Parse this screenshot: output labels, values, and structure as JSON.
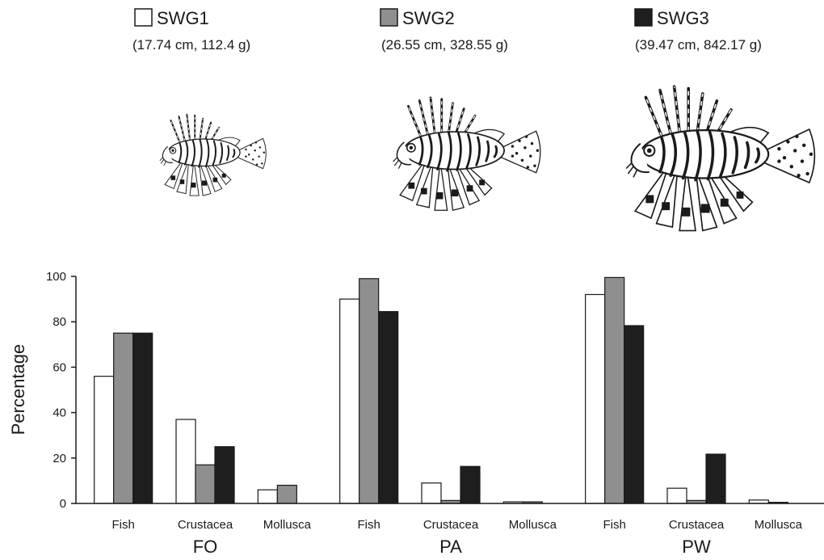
{
  "colors": {
    "SWG1": "#ffffff",
    "SWG2": "#8f8f8f",
    "SWG3": "#1e1e1e",
    "stroke": "#1a1a1a"
  },
  "legend": [
    {
      "name": "SWG1",
      "sub": "(17.74 cm, 112.4 g)",
      "color": "#ffffff"
    },
    {
      "name": "SWG2",
      "sub": "(26.55 cm, 328.55 g)",
      "color": "#8f8f8f"
    },
    {
      "name": "SWG3",
      "sub": "(39.47 cm, 842.17 g)",
      "color": "#1e1e1e"
    }
  ],
  "illustrations": [
    "lionfish-small",
    "lionfish-medium",
    "lionfish-large"
  ],
  "chart_data": {
    "type": "bar",
    "ylabel": "Percentage",
    "ylim": [
      0,
      100
    ],
    "yticks": [
      0,
      20,
      40,
      60,
      80,
      100
    ],
    "grid": false,
    "legend_placement": "top",
    "groups": [
      {
        "label": "FO",
        "categories": [
          "Fish",
          "Crustacea",
          "Mollusca"
        ],
        "series": [
          {
            "name": "SWG1",
            "values": [
              56,
              37,
              6
            ]
          },
          {
            "name": "SWG2",
            "values": [
              75,
              17,
              8
            ]
          },
          {
            "name": "SWG3",
            "values": [
              75,
              25,
              0
            ]
          }
        ]
      },
      {
        "label": "PA",
        "categories": [
          "Fish",
          "Crustacea",
          "Mollusca"
        ],
        "series": [
          {
            "name": "SWG1",
            "values": [
              90,
              9,
              0.7
            ]
          },
          {
            "name": "SWG2",
            "values": [
              99,
              1.3,
              0.7
            ]
          },
          {
            "name": "SWG3",
            "values": [
              84.5,
              16.3,
              0
            ]
          }
        ]
      },
      {
        "label": "PW",
        "categories": [
          "Fish",
          "Crustacea",
          "Mollusca"
        ],
        "series": [
          {
            "name": "SWG1",
            "values": [
              92,
              6.7,
              1.5
            ]
          },
          {
            "name": "SWG2",
            "values": [
              99.5,
              1.3,
              0.5
            ]
          },
          {
            "name": "SWG3",
            "values": [
              78.3,
              21.7,
              0
            ]
          }
        ]
      }
    ]
  }
}
